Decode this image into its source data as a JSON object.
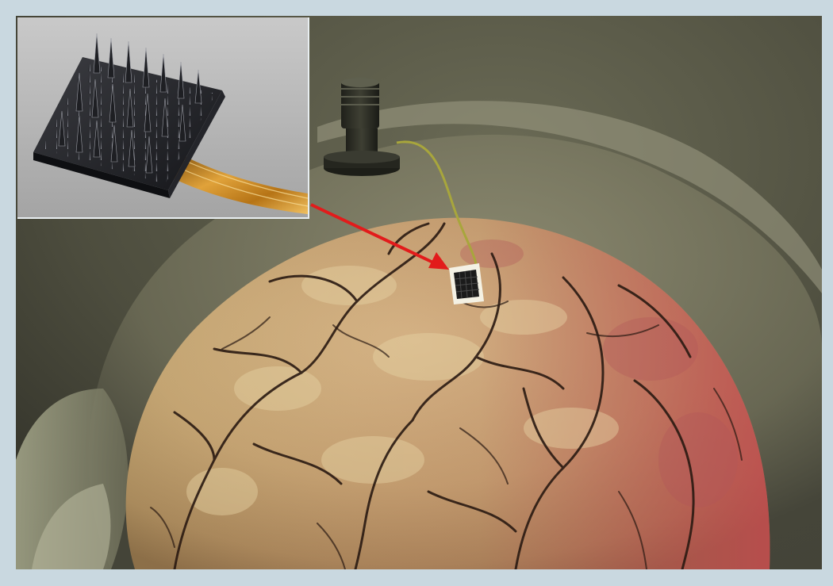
{
  "image": {
    "subject": "brain-implant-illustration",
    "inset_subject": "microelectrode-array",
    "colors": {
      "frame": "#c9d8e0",
      "arrow": "#e21b1b",
      "brain_base": "#c9ad7a",
      "brain_red": "#b0474a",
      "vessel": "#2a1a12",
      "background": "#4a4a3c"
    }
  }
}
